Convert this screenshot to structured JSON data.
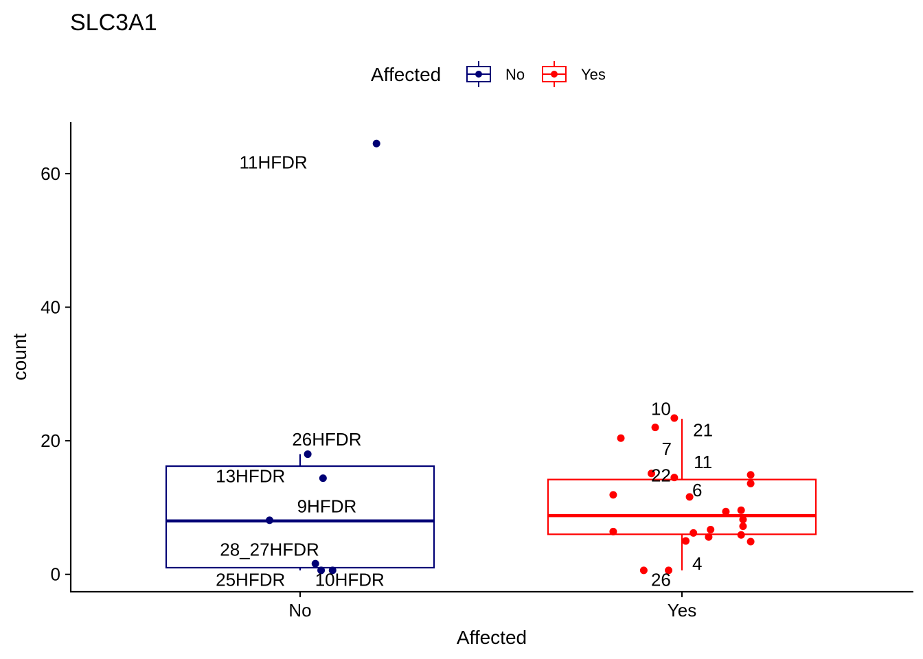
{
  "chart_data": {
    "type": "box",
    "title": "SLC3A1",
    "xlabel": "Affected",
    "ylabel": "count",
    "ylim": [
      -2.6,
      67.7
    ],
    "yticks": [
      0,
      20,
      40,
      60
    ],
    "ytick_labels": [
      "0",
      "20",
      "40",
      "60"
    ],
    "categories": [
      "No",
      "Yes"
    ],
    "grid": false,
    "legend": {
      "title": "Affected",
      "position": "top",
      "entries": [
        {
          "label": "No",
          "color": "#000075"
        },
        {
          "label": "Yes",
          "color": "#ff0000"
        }
      ]
    },
    "series": [
      {
        "name": "No",
        "color": "#000075",
        "box": {
          "whisker_low": 0.6,
          "q1": 1.0,
          "median": 8.0,
          "q3": 16.2,
          "whisker_high": 18.0
        },
        "points": [
          {
            "x": 0.2,
            "y": 64.5
          },
          {
            "x": 0.02,
            "y": 18.0
          },
          {
            "x": 0.06,
            "y": 14.4
          },
          {
            "x": -0.08,
            "y": 8.1
          },
          {
            "x": 0.04,
            "y": 1.6
          },
          {
            "x": 0.055,
            "y": 0.6
          },
          {
            "x": 0.085,
            "y": 0.6
          }
        ],
        "labels": [
          {
            "text": "11HFDR",
            "x": -0.07,
            "y": 61.7
          },
          {
            "text": "26HFDR",
            "x": 0.07,
            "y": 20.2
          },
          {
            "text": "13HFDR",
            "x": -0.13,
            "y": 14.7
          },
          {
            "text": "9HFDR",
            "x": 0.07,
            "y": 10.2
          },
          {
            "text": "28_27HFDR",
            "x": -0.08,
            "y": 3.7
          },
          {
            "text": "25HFDR",
            "x": -0.13,
            "y": -0.8
          },
          {
            "text": "10HFDR",
            "x": 0.13,
            "y": -0.8
          }
        ]
      },
      {
        "name": "Yes",
        "color": "#ff0000",
        "box": {
          "whisker_low": 0.6,
          "q1": 6.0,
          "median": 8.8,
          "q3": 14.2,
          "whisker_high": 23.3
        },
        "points": [
          {
            "x": -0.02,
            "y": 23.4
          },
          {
            "x": -0.07,
            "y": 22.0
          },
          {
            "x": -0.16,
            "y": 20.4
          },
          {
            "x": -0.08,
            "y": 15.1
          },
          {
            "x": -0.02,
            "y": 14.5
          },
          {
            "x": 0.18,
            "y": 14.9
          },
          {
            "x": 0.18,
            "y": 13.6
          },
          {
            "x": 0.02,
            "y": 11.6
          },
          {
            "x": -0.18,
            "y": 11.9
          },
          {
            "x": 0.115,
            "y": 9.4
          },
          {
            "x": 0.155,
            "y": 9.6
          },
          {
            "x": 0.16,
            "y": 8.2
          },
          {
            "x": 0.16,
            "y": 7.2
          },
          {
            "x": 0.075,
            "y": 6.7
          },
          {
            "x": 0.03,
            "y": 6.2
          },
          {
            "x": -0.18,
            "y": 6.4
          },
          {
            "x": 0.155,
            "y": 5.9
          },
          {
            "x": 0.07,
            "y": 5.6
          },
          {
            "x": 0.01,
            "y": 5.0
          },
          {
            "x": 0.18,
            "y": 4.9
          },
          {
            "x": -0.1,
            "y": 0.6
          },
          {
            "x": -0.035,
            "y": 0.6
          }
        ],
        "labels": [
          {
            "text": "10",
            "x": -0.055,
            "y": 24.8
          },
          {
            "text": "21",
            "x": 0.055,
            "y": 21.6
          },
          {
            "text": "7",
            "x": -0.04,
            "y": 18.8
          },
          {
            "text": "11",
            "x": 0.055,
            "y": 16.8
          },
          {
            "text": "22",
            "x": -0.055,
            "y": 14.8
          },
          {
            "text": "6",
            "x": 0.04,
            "y": 12.6
          },
          {
            "text": "4",
            "x": 0.04,
            "y": 1.6
          },
          {
            "text": "26",
            "x": -0.055,
            "y": -0.8
          }
        ]
      }
    ]
  }
}
